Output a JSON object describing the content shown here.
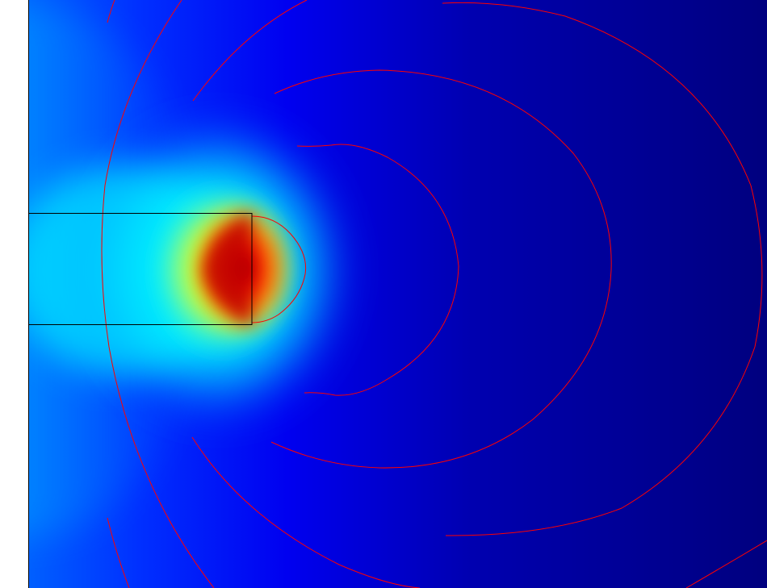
{
  "figure": {
    "kind": "field-simulation-surface-plot",
    "colormap": "jet",
    "colors": {
      "background": "#ffffff",
      "field_low": "#00007f",
      "field_mid_low": "#0000ff",
      "field_mid": "#00ffff",
      "field_mid_high": "#ffff00",
      "field_high_orange": "#ff7f00",
      "field_high": "#ff0000",
      "field_max": "#7f0000",
      "contour_lines": "#ff0000",
      "geometry_outline": "#000000"
    },
    "contour_count": 5,
    "shows_axes": false,
    "shows_legend": false
  }
}
